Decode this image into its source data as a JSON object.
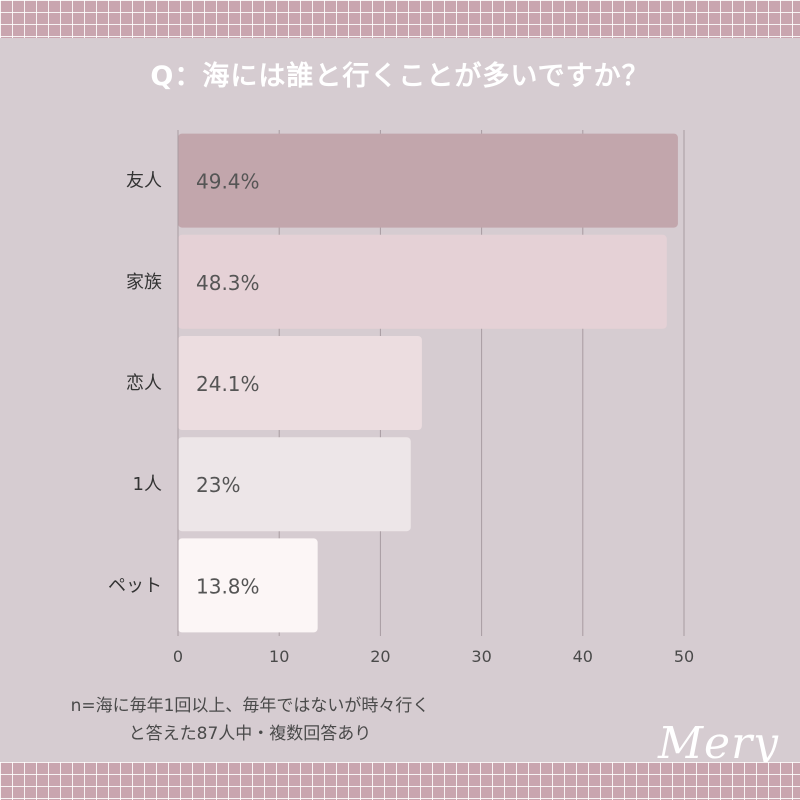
{
  "chart_data": {
    "type": "bar",
    "orientation": "horizontal",
    "title": "Q：海には誰と行くことが多いですか？",
    "categories": [
      "友人",
      "家族",
      "恋人",
      "1人",
      "ペット"
    ],
    "values": [
      49.4,
      48.3,
      24.1,
      23,
      13.8
    ],
    "data_labels": [
      "49.4%",
      "48.3%",
      "24.1%",
      "23%",
      "13.8%"
    ],
    "bar_colors": [
      "#c2a6ac",
      "#e5d1d6",
      "#ecdde0",
      "#ede6e8",
      "#fcf6f6"
    ],
    "xlim": [
      0,
      50
    ],
    "xticks": [
      0,
      10,
      20,
      30,
      40,
      50
    ],
    "xlabel": "",
    "ylabel": "",
    "grid": true
  },
  "note": {
    "line1": "n=海に毎年1回以上、毎年ではないが時々行く",
    "line2": "と答えた87人中・複数回答あり"
  },
  "brand": {
    "logo": "Mery"
  },
  "colors": {
    "background": "#d6ccd1",
    "strip": "#c9a5af",
    "title": "#ffffff"
  }
}
